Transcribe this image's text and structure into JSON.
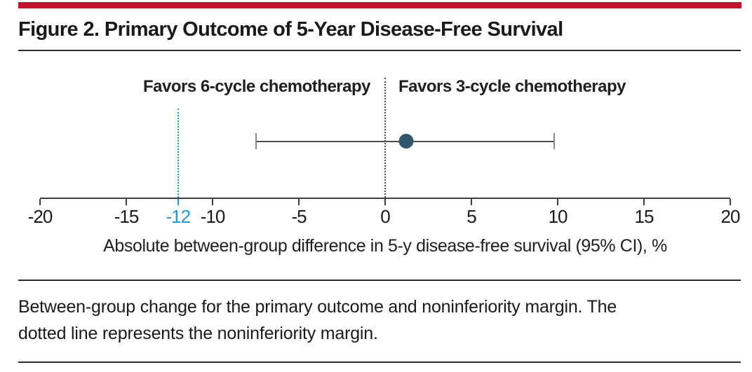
{
  "figure": {
    "title": "Figure 2. Primary Outcome of 5-Year Disease-Free Survival"
  },
  "annotations": {
    "favors_left": "Favors 6-cycle chemotherapy",
    "favors_right": "Favors 3-cycle chemotherapy"
  },
  "caption": {
    "lines": [
      "Between-group change for the primary outcome and noninferiority margin. The",
      "dotted line represents the noninferiority margin."
    ]
  },
  "colors": {
    "accent_red": "#ce0e2d",
    "margin_blue": "#1f9bd8",
    "point_fill": "#30566a"
  },
  "chart_data": {
    "type": "scatter",
    "title": "Primary Outcome of 5-Year Disease-Free Survival",
    "series": [
      {
        "name": "Absolute between-group difference",
        "point_estimate": 1.2,
        "ci_lower": -7.5,
        "ci_upper": 9.8
      }
    ],
    "reference_line_x": 0,
    "noninferiority_margin_x": -12,
    "x_axis": {
      "min": -20,
      "max": 20,
      "ticks": [
        -20,
        -15,
        -10,
        -5,
        0,
        5,
        10,
        15,
        20
      ],
      "label": "Absolute between-group difference in 5-y disease-free survival (95% CI), %"
    },
    "grid": false,
    "legend": null
  }
}
